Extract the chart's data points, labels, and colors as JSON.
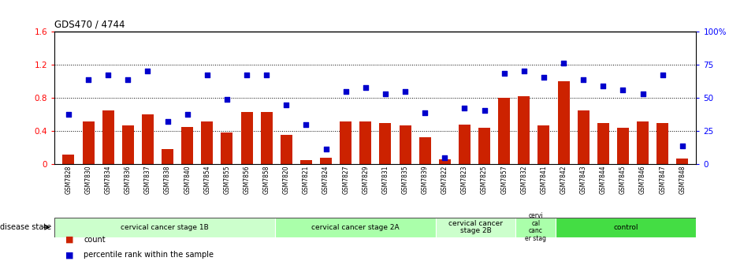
{
  "title": "GDS470 / 4744",
  "samples": [
    "GSM7828",
    "GSM7830",
    "GSM7834",
    "GSM7836",
    "GSM7837",
    "GSM7838",
    "GSM7840",
    "GSM7854",
    "GSM7855",
    "GSM7856",
    "GSM7858",
    "GSM7820",
    "GSM7821",
    "GSM7824",
    "GSM7827",
    "GSM7829",
    "GSM7831",
    "GSM7835",
    "GSM7839",
    "GSM7822",
    "GSM7823",
    "GSM7825",
    "GSM7857",
    "GSM7832",
    "GSM7841",
    "GSM7842",
    "GSM7843",
    "GSM7844",
    "GSM7845",
    "GSM7846",
    "GSM7847",
    "GSM7848"
  ],
  "counts": [
    0.12,
    0.52,
    0.65,
    0.47,
    0.6,
    0.18,
    0.45,
    0.52,
    0.38,
    0.63,
    0.63,
    0.36,
    0.05,
    0.08,
    0.52,
    0.52,
    0.5,
    0.47,
    0.33,
    0.06,
    0.48,
    0.44,
    0.8,
    0.82,
    0.47,
    1.0,
    0.65,
    0.5,
    0.44,
    0.52,
    0.5,
    0.07
  ],
  "percentiles": [
    0.6,
    1.02,
    1.08,
    1.02,
    1.13,
    0.52,
    0.6,
    1.08,
    0.78,
    1.08,
    1.08,
    0.72,
    0.48,
    0.18,
    0.88,
    0.93,
    0.85,
    0.88,
    0.62,
    0.08,
    0.68,
    0.65,
    1.1,
    1.13,
    1.05,
    1.22,
    1.02,
    0.95,
    0.9,
    0.85,
    1.08,
    0.22
  ],
  "disease_groups": [
    {
      "label": "cervical cancer stage 1B",
      "start": 0,
      "end": 11,
      "color": "#ccffcc"
    },
    {
      "label": "cervical cancer stage 2A",
      "start": 11,
      "end": 19,
      "color": "#aaffaa"
    },
    {
      "label": "cervical cancer\nstage 2B",
      "start": 19,
      "end": 23,
      "color": "#ccffcc"
    },
    {
      "label": "cervi\ncal\ncanc\ner stag",
      "start": 23,
      "end": 25,
      "color": "#aaffaa"
    },
    {
      "label": "control",
      "start": 25,
      "end": 32,
      "color": "#44dd44"
    }
  ],
  "bar_color": "#cc2200",
  "scatter_color": "#0000cc",
  "ylim_left": [
    0,
    1.6
  ],
  "yticks_left": [
    0,
    0.4,
    0.8,
    1.2,
    1.6
  ],
  "ytick_labels_left": [
    "0",
    "0.4",
    "0.8",
    "1.2",
    "1.6"
  ],
  "ytick_labels_right": [
    "0",
    "25",
    "50",
    "75",
    "100%"
  ],
  "dotted_lines": [
    0.4,
    0.8,
    1.2
  ],
  "bar_width": 0.6,
  "bg_color": "#ffffff"
}
